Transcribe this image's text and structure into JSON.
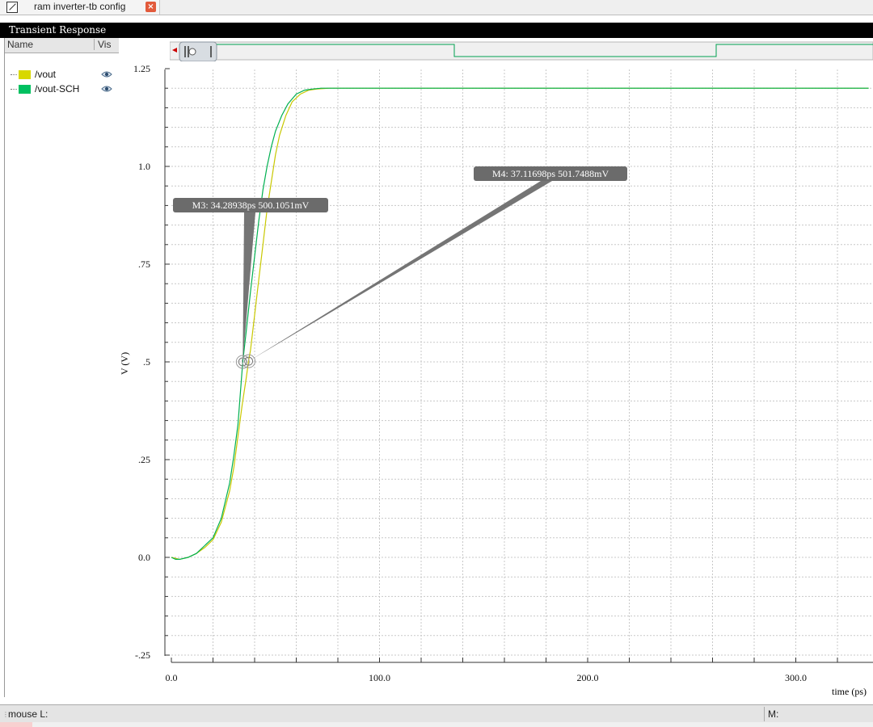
{
  "window": {
    "tab_title": "ram inverter-tb config",
    "close_glyph": "×",
    "panel_title": "Transient Response"
  },
  "trace_list": {
    "name_header": "Name",
    "vis_header": "Vis",
    "traces": [
      {
        "name": "/vout",
        "color": "#d8d800"
      },
      {
        "name": "/vout-SCH",
        "color": "#00c060"
      }
    ]
  },
  "chart_data": {
    "type": "line",
    "xlabel": "time (ps)",
    "ylabel": "V (V)",
    "xlim": [
      0,
      335
    ],
    "ylim": [
      -0.25,
      1.25
    ],
    "x_ticks": [
      "0.0",
      "100.0",
      "200.0",
      "300.0"
    ],
    "x_tick_values": [
      0,
      100,
      200,
      300
    ],
    "y_ticks": [
      "1.25",
      "1.0",
      ".75",
      ".5",
      ".25",
      "0.0",
      "-.25"
    ],
    "y_tick_values": [
      1.25,
      1.0,
      0.75,
      0.5,
      0.25,
      0.0,
      -0.25
    ],
    "grid": true,
    "series": [
      {
        "name": "/vout",
        "color": "#c8c800",
        "x": [
          0,
          4,
          8,
          12,
          16,
          20,
          24,
          28,
          30,
          32,
          34,
          36,
          37.1,
          38,
          40,
          42,
          44,
          46,
          48,
          50,
          52,
          55,
          58,
          62,
          66,
          70,
          76,
          90,
          335
        ],
        "y": [
          0.0,
          -0.005,
          0.0,
          0.01,
          0.025,
          0.045,
          0.09,
          0.17,
          0.23,
          0.31,
          0.39,
          0.46,
          0.502,
          0.53,
          0.62,
          0.71,
          0.8,
          0.89,
          0.96,
          1.03,
          1.08,
          1.13,
          1.165,
          1.185,
          1.195,
          1.198,
          1.2,
          1.2,
          1.2
        ]
      },
      {
        "name": "/vout-SCH",
        "color": "#00b050",
        "x": [
          0,
          2,
          4,
          8,
          12,
          16,
          20,
          24,
          28,
          30,
          32,
          34.3,
          36,
          38,
          40,
          42,
          44,
          46,
          48,
          50,
          53,
          56,
          60,
          64,
          68,
          72,
          80,
          335
        ],
        "y": [
          0.0,
          -0.005,
          -0.005,
          0.0,
          0.01,
          0.03,
          0.05,
          0.1,
          0.19,
          0.26,
          0.34,
          0.5,
          0.58,
          0.68,
          0.77,
          0.86,
          0.94,
          1.0,
          1.05,
          1.09,
          1.13,
          1.16,
          1.185,
          1.195,
          1.198,
          1.2,
          1.2,
          1.2
        ]
      }
    ],
    "markers": [
      {
        "label": "M3: 34.28938ps 500.1051mV",
        "x": 34.28938,
        "y": 0.5001051
      },
      {
        "label": "M4: 37.11698ps 501.7488mV",
        "x": 37.11698,
        "y": 0.5017488
      }
    ]
  },
  "overview": {
    "step_levels": [
      1,
      0,
      1
    ]
  },
  "statusbar": {
    "mouse_l": "mouse L:",
    "mouse_m": "M:"
  }
}
